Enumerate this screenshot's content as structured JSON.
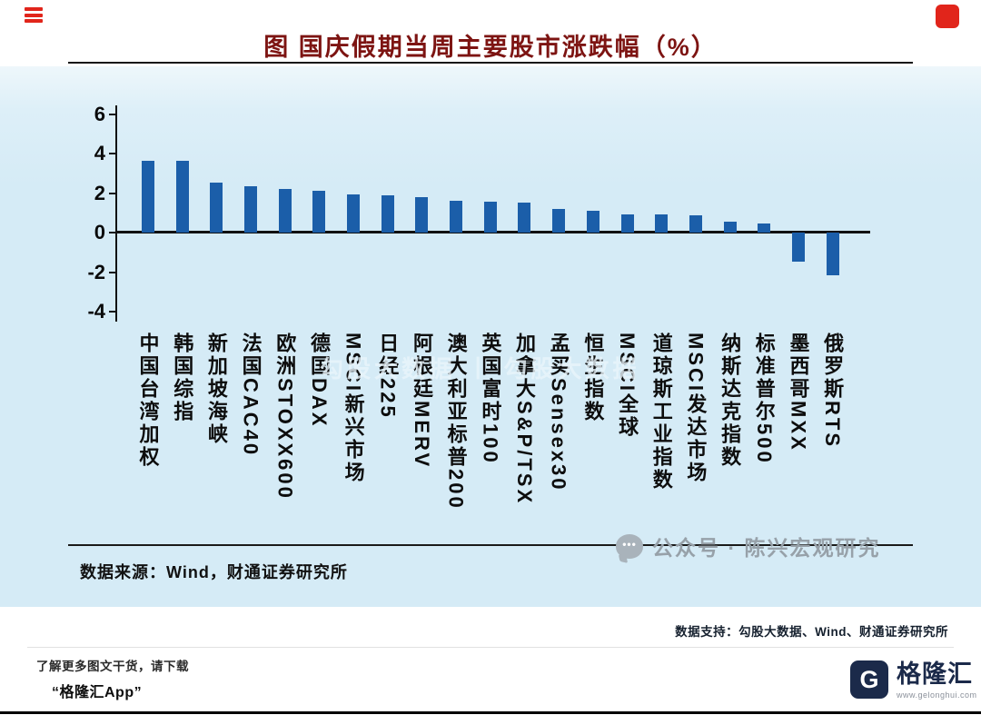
{
  "page": {
    "title": "图  国庆假期当周主要股市涨跌幅（%）",
    "source_line": "数据来源：Wind，财通证券研究所",
    "support_line": "数据支持：勾股大数据、Wind、财通证券研究所",
    "watermark_center": "勾股大数据 丨 勾股大数据",
    "watermark_right": "公众号 · 陈兴宏观研究",
    "footer": {
      "promo_line1": "了解更多图文干货，请下载",
      "promo_line2": "“格隆汇App”",
      "brand_letter": "G",
      "brand_name": "格隆汇",
      "brand_url": "www.gelonghui.com"
    },
    "colors": {
      "bar": "#1b5ea9",
      "panel_bg": "#d5ebf6",
      "title": "#7d1412",
      "accent_red": "#e1251b",
      "brand_navy": "#1b2a4a"
    }
  },
  "chart_data": {
    "type": "bar",
    "title": "图  国庆假期当周主要股市涨跌幅（%）",
    "categories": [
      "中国台湾加权",
      "韩国综指",
      "新加坡海峡",
      "法国CAC40",
      "欧洲STOXX600",
      "德国DAX",
      "MSCI新兴市场",
      "日经225",
      "阿根廷MERV",
      "澳大利亚标普200",
      "英国富时100",
      "加拿大S&P/TSX",
      "孟买Sensex30",
      "恒生指数",
      "MSCI全球",
      "道琼斯工业指数",
      "MSCI发达市场",
      "纳斯达克指数",
      "标准普尔500",
      "墨西哥MXX",
      "俄罗斯RTS"
    ],
    "values": [
      3.65,
      3.65,
      2.55,
      2.35,
      2.2,
      2.1,
      1.95,
      1.9,
      1.8,
      1.6,
      1.55,
      1.5,
      1.2,
      1.1,
      0.92,
      0.9,
      0.86,
      0.55,
      0.45,
      -1.45,
      -2.15
    ],
    "ylabel": "",
    "xlabel": "",
    "ylim": [
      -4,
      6
    ],
    "yticks": [
      6,
      4,
      2,
      0,
      -2,
      -4
    ],
    "grid": false,
    "legend": false,
    "bar_color": "#1b5ea9"
  }
}
